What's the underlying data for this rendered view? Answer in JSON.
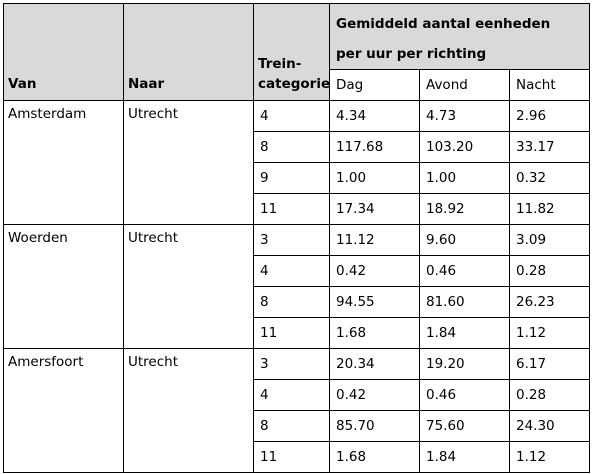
{
  "header": {
    "van": "Van",
    "naar": "Naar",
    "categorie_line1": "Trein-",
    "categorie_line2": "categorie",
    "group_line1": "Gemiddeld aantal eenheden",
    "group_line2": "per uur per richting",
    "dag": "Dag",
    "avond": "Avond",
    "nacht": "Nacht"
  },
  "groups": [
    {
      "van": "Amsterdam",
      "naar": "Utrecht",
      "rows": [
        {
          "cat": "4",
          "dag": "4.34",
          "avond": "4.73",
          "nacht": "2.96"
        },
        {
          "cat": "8",
          "dag": "117.68",
          "avond": "103.20",
          "nacht": "33.17"
        },
        {
          "cat": "9",
          "dag": "1.00",
          "avond": "1.00",
          "nacht": "0.32"
        },
        {
          "cat": "11",
          "dag": "17.34",
          "avond": "18.92",
          "nacht": "11.82"
        }
      ]
    },
    {
      "van": "Woerden",
      "naar": "Utrecht",
      "rows": [
        {
          "cat": "3",
          "dag": "11.12",
          "avond": "9.60",
          "nacht": "3.09"
        },
        {
          "cat": "4",
          "dag": "0.42",
          "avond": "0.46",
          "nacht": "0.28"
        },
        {
          "cat": "8",
          "dag": "94.55",
          "avond": "81.60",
          "nacht": "26.23"
        },
        {
          "cat": "11",
          "dag": "1.68",
          "avond": "1.84",
          "nacht": "1.12"
        }
      ]
    },
    {
      "van": "Amersfoort",
      "naar": "Utrecht",
      "rows": [
        {
          "cat": "3",
          "dag": "20.34",
          "avond": "19.20",
          "nacht": "6.17"
        },
        {
          "cat": "4",
          "dag": "0.42",
          "avond": "0.46",
          "nacht": "0.28"
        },
        {
          "cat": "8",
          "dag": "85.70",
          "avond": "75.60",
          "nacht": "24.30"
        },
        {
          "cat": "11",
          "dag": "1.68",
          "avond": "1.84",
          "nacht": "1.12"
        }
      ]
    }
  ]
}
